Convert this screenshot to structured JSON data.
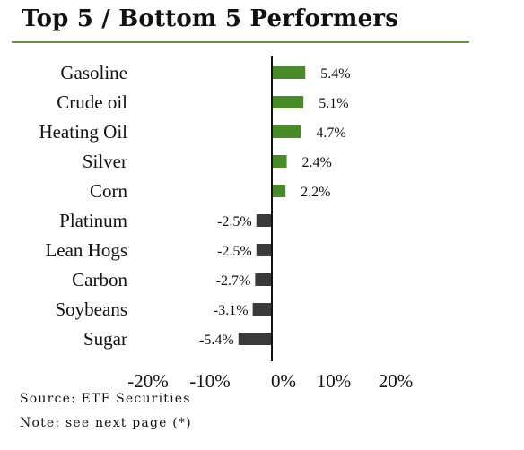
{
  "title": "Top 5 / Bottom 5 Performers",
  "colors": {
    "positive": "#4a8a2a",
    "negative": "#3a3a3a",
    "rule": "#6a8a4a",
    "axis": "#111111"
  },
  "chart_data": {
    "type": "bar",
    "orientation": "horizontal",
    "categories": [
      "Gasoline",
      "Crude oil",
      "Heating Oil",
      "Silver",
      "Corn",
      "Platinum",
      "Lean Hogs",
      "Carbon",
      "Soybeans",
      "Sugar"
    ],
    "values": [
      5.4,
      5.1,
      4.7,
      2.4,
      2.2,
      -2.5,
      -2.5,
      -2.7,
      -3.1,
      -5.4
    ],
    "value_labels": [
      "5.4%",
      "5.1%",
      "4.7%",
      "2.4%",
      "2.2%",
      "-2.5%",
      "-2.5%",
      "-2.7%",
      "-3.1%",
      "-5.4%"
    ],
    "xlim": [
      -20,
      20
    ],
    "xticks": [
      -20,
      -10,
      0,
      10,
      20
    ],
    "xtick_labels": [
      "-20%",
      "-10%",
      "0%",
      "10%",
      "20%"
    ],
    "grid": false,
    "legend": "none"
  },
  "footer": {
    "source": "Source: ETF Securities",
    "note": "Note: see next page (*)"
  }
}
